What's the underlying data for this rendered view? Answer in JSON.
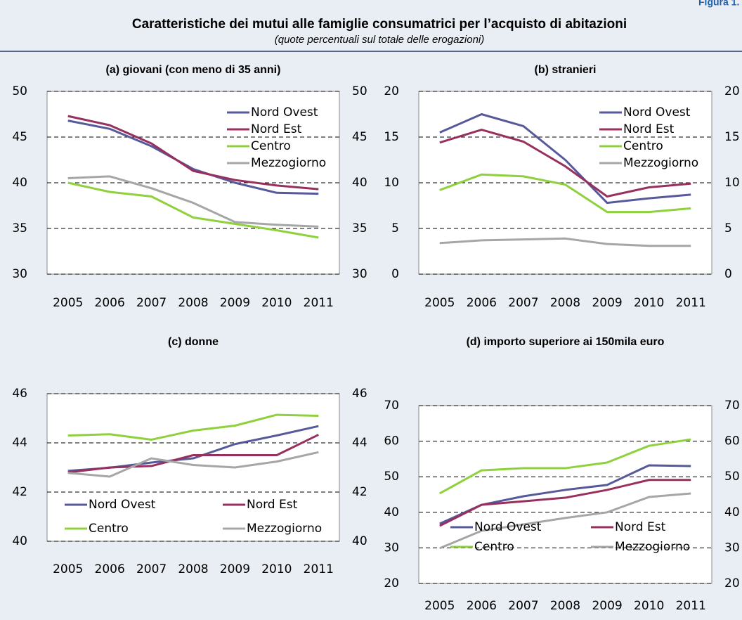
{
  "header": {
    "label": "Figura 1.",
    "title": "Caratteristiche dei mutui alle famiglie consumatrici per l’acquisto di abitazioni",
    "subtitle": "(quote percentuali sul totale delle erogazioni)"
  },
  "chart_data": [
    {
      "type": "line",
      "title": "(a) giovani (con meno di 35 anni)",
      "categories": [
        "2005",
        "2006",
        "2007",
        "2008",
        "2009",
        "2010",
        "2011"
      ],
      "series": [
        {
          "name": "Nord Ovest",
          "color": "#56599a",
          "values": [
            46.8,
            45.9,
            44.0,
            41.5,
            40.0,
            38.9,
            38.8
          ]
        },
        {
          "name": "Nord Est",
          "color": "#98305e",
          "values": [
            47.3,
            46.3,
            44.3,
            41.3,
            40.3,
            39.7,
            39.3
          ]
        },
        {
          "name": "Centro",
          "color": "#8ed13c",
          "values": [
            40.0,
            39.0,
            38.5,
            36.2,
            35.5,
            34.8,
            34.0
          ]
        },
        {
          "name": "Mezzogiorno",
          "color": "#a6a6a6",
          "values": [
            40.5,
            40.7,
            39.4,
            37.8,
            35.7,
            35.4,
            35.2
          ]
        }
      ],
      "ylim": [
        30,
        50
      ],
      "yticks": [
        30,
        35,
        40,
        45,
        50
      ],
      "y2lim": [
        30,
        50
      ],
      "y2ticks": [
        30,
        35,
        40,
        45,
        50
      ],
      "grid": true,
      "legend": "upper right"
    },
    {
      "type": "line",
      "title": "(b) stranieri",
      "categories": [
        "2005",
        "2006",
        "2007",
        "2008",
        "2009",
        "2010",
        "2011"
      ],
      "series": [
        {
          "name": "Nord Ovest",
          "color": "#56599a",
          "values": [
            15.5,
            17.5,
            16.2,
            12.5,
            7.8,
            8.3,
            8.7
          ]
        },
        {
          "name": "Nord Est",
          "color": "#98305e",
          "values": [
            14.4,
            15.8,
            14.5,
            11.8,
            8.5,
            9.5,
            9.9
          ]
        },
        {
          "name": "Centro",
          "color": "#8ed13c",
          "values": [
            9.2,
            10.9,
            10.7,
            9.8,
            6.8,
            6.8,
            7.2
          ]
        },
        {
          "name": "Mezzogiorno",
          "color": "#a6a6a6",
          "values": [
            3.4,
            3.7,
            3.8,
            3.9,
            3.3,
            3.1,
            3.1
          ]
        }
      ],
      "ylim": [
        0,
        20
      ],
      "yticks": [
        0,
        5,
        10,
        15,
        20
      ],
      "y2lim": [
        0,
        20
      ],
      "y2ticks": [
        0,
        5,
        10,
        15,
        20
      ],
      "grid": true,
      "legend": "upper right"
    },
    {
      "type": "line",
      "title": "(c) donne",
      "categories": [
        "2005",
        "2006",
        "2007",
        "2008",
        "2009",
        "2010",
        "2011"
      ],
      "series": [
        {
          "name": "Nord Ovest",
          "color": "#56599a",
          "values": [
            42.86,
            42.99,
            43.2,
            43.37,
            43.95,
            44.3,
            44.68
          ]
        },
        {
          "name": "Nord Est",
          "color": "#98305e",
          "values": [
            42.8,
            43.0,
            43.06,
            43.5,
            43.5,
            43.5,
            44.33
          ]
        },
        {
          "name": "Centro",
          "color": "#8ed13c",
          "values": [
            44.3,
            44.35,
            44.13,
            44.5,
            44.7,
            45.14,
            45.1
          ]
        },
        {
          "name": "Mezzogiorno",
          "color": "#a6a6a6",
          "values": [
            42.78,
            42.63,
            43.37,
            43.1,
            43.0,
            43.24,
            43.62
          ]
        }
      ],
      "ylim": [
        40,
        46
      ],
      "yticks": [
        40,
        42,
        44,
        46
      ],
      "y2lim": [
        40,
        46
      ],
      "y2ticks": [
        40,
        42,
        44,
        46
      ],
      "grid": true,
      "legend": "lower left"
    },
    {
      "type": "line",
      "title": "(d) importo superiore ai 150mila euro",
      "categories": [
        "2005",
        "2006",
        "2007",
        "2008",
        "2009",
        "2010",
        "2011"
      ],
      "series": [
        {
          "name": "Nord Ovest",
          "color": "#56599a",
          "values": [
            36.8,
            42.1,
            44.5,
            46.3,
            47.7,
            53.2,
            53.0
          ]
        },
        {
          "name": "Nord Est",
          "color": "#98305e",
          "values": [
            36.2,
            42.1,
            43.1,
            44.1,
            46.3,
            49.1,
            49.1
          ]
        },
        {
          "name": "Centro",
          "color": "#8ed13c",
          "values": [
            45.3,
            51.8,
            52.4,
            52.4,
            54.0,
            58.7,
            60.5
          ]
        },
        {
          "name": "Mezzogiorno",
          "color": "#a6a6a6",
          "values": [
            29.9,
            34.8,
            36.6,
            38.4,
            40.0,
            44.3,
            45.3
          ]
        }
      ],
      "ylim": [
        20,
        70
      ],
      "yticks": [
        20,
        30,
        40,
        50,
        60,
        70
      ],
      "y2lim": [
        20,
        70
      ],
      "y2ticks": [
        20,
        30,
        40,
        50,
        60,
        70
      ],
      "grid": true,
      "legend": "lower center"
    }
  ]
}
